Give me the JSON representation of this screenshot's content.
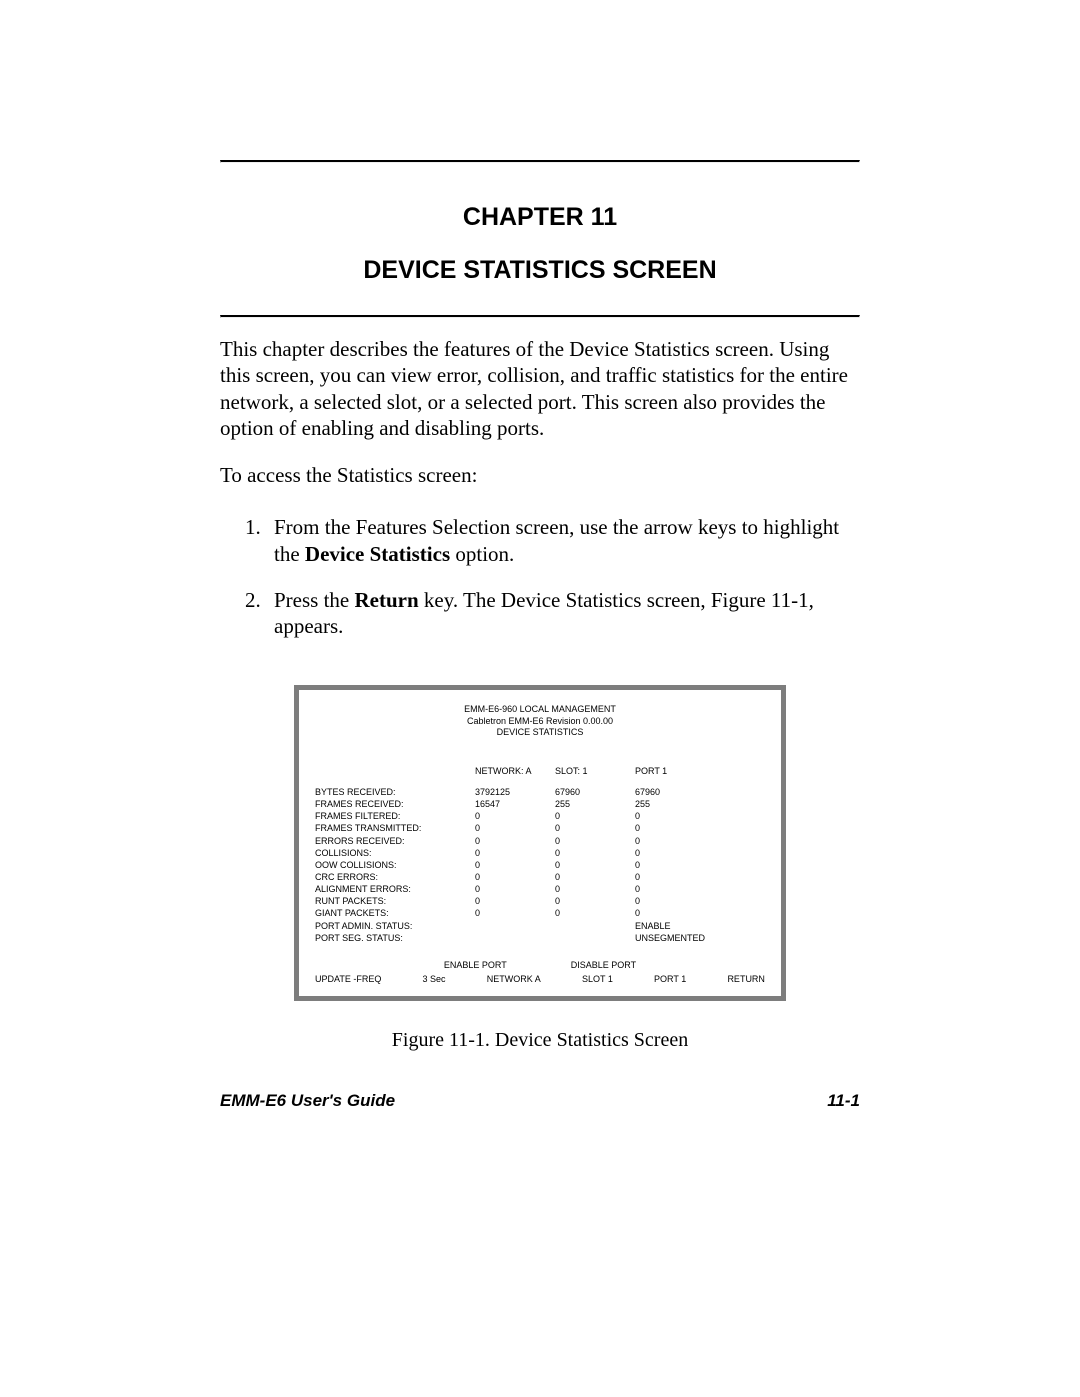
{
  "chapter": {
    "label": "CHAPTER 11",
    "title": "DEVICE STATISTICS SCREEN"
  },
  "paragraphs": {
    "intro": "This chapter describes the features of the Device Statistics screen. Using this screen, you can view error, collision, and traffic statistics for the entire network, a selected slot, or a selected port. This screen also provides the option of enabling and disabling ports.",
    "access": "To access the Statistics screen:"
  },
  "steps": {
    "s1_a": "From the Features Selection screen, use the arrow keys to highlight the ",
    "s1_b": "Device Statistics",
    "s1_c": " option.",
    "s2_a": "Press the ",
    "s2_b": "Return",
    "s2_c": " key. The Device Statistics screen, Figure 11-1, appears."
  },
  "screen": {
    "header1": "EMM-E6-960 LOCAL MANAGEMENT",
    "header2": "Cabletron EMM-E6 Revision 0.00.00",
    "header3": "DEVICE STATISTICS",
    "cols": {
      "c1": "NETWORK: A",
      "c2": "SLOT: 1",
      "c3": "PORT 1"
    },
    "rows": [
      {
        "label": "BYTES RECEIVED:",
        "v1": "3792125",
        "v2": "67960",
        "v3": "67960"
      },
      {
        "label": "FRAMES RECEIVED:",
        "v1": "16547",
        "v2": "255",
        "v3": "255"
      },
      {
        "label": "FRAMES FILTERED:",
        "v1": "0",
        "v2": "0",
        "v3": "0"
      },
      {
        "label": "FRAMES TRANSMITTED:",
        "v1": "0",
        "v2": "0",
        "v3": "0"
      },
      {
        "label": "ERRORS RECEIVED:",
        "v1": "0",
        "v2": "0",
        "v3": "0"
      },
      {
        "label": "COLLISIONS:",
        "v1": "0",
        "v2": "0",
        "v3": "0"
      },
      {
        "label": "OOW COLLISIONS:",
        "v1": "0",
        "v2": "0",
        "v3": "0"
      },
      {
        "label": "CRC ERRORS:",
        "v1": "0",
        "v2": "0",
        "v3": "0"
      },
      {
        "label": "ALIGNMENT ERRORS:",
        "v1": "0",
        "v2": "0",
        "v3": "0"
      },
      {
        "label": "RUNT PACKETS:",
        "v1": "0",
        "v2": "0",
        "v3": "0"
      },
      {
        "label": "GIANT PACKETS:",
        "v1": "0",
        "v2": "0",
        "v3": "0"
      },
      {
        "label": "PORT ADMIN. STATUS:",
        "v1": "",
        "v2": "",
        "v3": "ENABLE"
      },
      {
        "label": "PORT SEG. STATUS:",
        "v1": "",
        "v2": "",
        "v3": "UNSEGMENTED"
      }
    ],
    "bar1": {
      "a": "ENABLE PORT",
      "b": "DISABLE PORT"
    },
    "bar2": {
      "a": "UPDATE -FREQ",
      "b": "3 Sec",
      "c": "NETWORK  A",
      "d": "SLOT  1",
      "e": "PORT  1",
      "f": "RETURN"
    }
  },
  "caption": "Figure 11-1.  Device Statistics Screen",
  "footer": {
    "left": "EMM-E6 User's Guide",
    "right": "11-1"
  }
}
